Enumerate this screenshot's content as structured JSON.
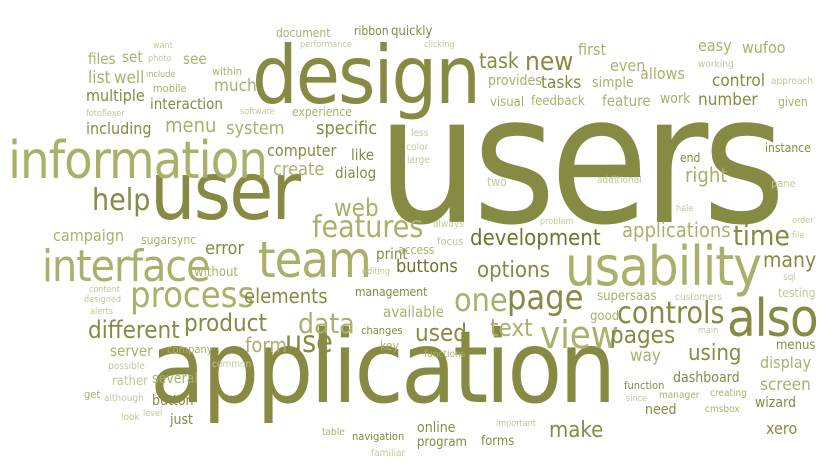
{
  "palette": {
    "background": "#ffffff",
    "primary": "#878a42",
    "secondary": "#aab06a",
    "tertiary": "#c2c79a",
    "dark": "#6f7430"
  },
  "words": [
    "users",
    "application",
    "design",
    "user",
    "information",
    "usability",
    "interface",
    "team",
    "also",
    "process",
    "features",
    "one",
    "page",
    "view",
    "controls",
    "development",
    "web",
    "data",
    "use",
    "pages",
    "time",
    "product",
    "different",
    "help",
    "new",
    "options",
    "elements",
    "buttons",
    "task",
    "text",
    "using",
    "applications",
    "menu",
    "used",
    "make",
    "right",
    "system",
    "create",
    "error",
    "campaign",
    "specific",
    "display",
    "number",
    "screen",
    "including",
    "many",
    "form",
    "interaction",
    "much",
    "first",
    "control",
    "allows",
    "easy",
    "even",
    "tasks",
    "computer",
    "print",
    "available",
    "like",
    "dialog",
    "multiple",
    "well",
    "list",
    "see",
    "set",
    "files",
    "provides",
    "simple",
    "feature",
    "work",
    "visual",
    "feedback",
    "wufoo",
    "quickly",
    "ribbon",
    "document",
    "performance",
    "clicking",
    "working",
    "approach",
    "instance",
    "end",
    "menus",
    "server",
    "company",
    "way",
    "button",
    "several",
    "rather",
    "wizard",
    "dashboard",
    "need",
    "function",
    "program",
    "forms",
    "online",
    "navigation",
    "just",
    "look",
    "level",
    "although",
    "get",
    "possible",
    "common",
    "key",
    "changes",
    "management",
    "editing",
    "access",
    "focus",
    "always",
    "problem",
    "supersaas",
    "good",
    "customers",
    "testing",
    "sql",
    "file",
    "order",
    "hale",
    "pane",
    "additional",
    "two",
    "large",
    "color",
    "less",
    "software",
    "experience",
    "fotoflexer",
    "mobile",
    "photo",
    "include",
    "want",
    "within",
    "sugarsync",
    "without",
    "content",
    "designed",
    "alerts",
    "main",
    "since",
    "manager",
    "creating",
    "cmsbox",
    "xero",
    "table",
    "familiar",
    "important",
    "given",
    "functions"
  ]
}
